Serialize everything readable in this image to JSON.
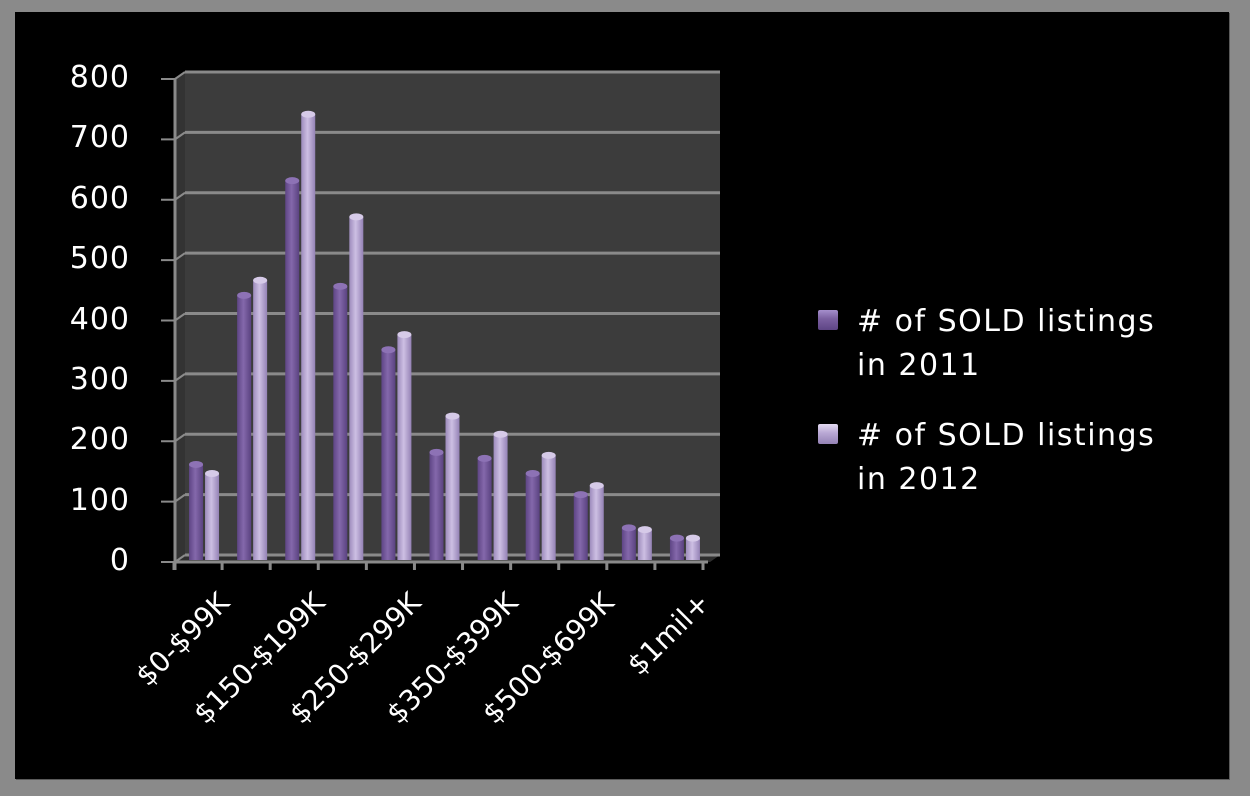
{
  "chart_data": {
    "type": "bar",
    "title": "",
    "xlabel": "",
    "ylabel": "",
    "ylim": [
      0,
      800
    ],
    "yticks": [
      0,
      100,
      200,
      300,
      400,
      500,
      600,
      700,
      800
    ],
    "grid": true,
    "legend_position": "right",
    "style": "3d-clustered-cylinder",
    "categories": [
      "$0-$99K",
      "",
      "$150-$199K",
      "",
      "$250-$299K",
      "",
      "$350-$399K",
      "",
      "$500-$699K",
      "",
      "$1mil+"
    ],
    "visible_tick_labels": [
      "$0-$99K",
      "$150-$199K",
      "$250-$299K",
      "$350-$399K",
      "$500-$699K",
      "$1mil+"
    ],
    "series": [
      {
        "name": "# of SOLD listings in 2011",
        "color": "#7a5fa0",
        "values": [
          150,
          430,
          620,
          445,
          340,
          170,
          160,
          135,
          100,
          45,
          28
        ]
      },
      {
        "name": "# of SOLD listings in 2012",
        "color": "#b9a8d4",
        "values": [
          135,
          455,
          730,
          560,
          365,
          230,
          200,
          165,
          115,
          42,
          28
        ]
      }
    ]
  },
  "colors": {
    "outer_background": "#8a8a8a",
    "chart_background": "#000000",
    "plot_wall": "#3c3c3c",
    "gridline": "#8a8a8a",
    "text": "#ffffff"
  },
  "legend": {
    "items": [
      {
        "line1": "# of SOLD listings",
        "line2": "in 2011",
        "color": "#7a5fa0"
      },
      {
        "line1": "# of SOLD listings",
        "line2": "in 2012",
        "color": "#b9a8d4"
      }
    ]
  },
  "axis": {
    "y_labels": [
      "800",
      "700",
      "600",
      "500",
      "400",
      "300",
      "200",
      "100",
      "0"
    ],
    "x_labels": [
      "$0-$99K",
      "$150-$199K",
      "$250-$299K",
      "$350-$399K",
      "$500-$699K",
      "$1mil+"
    ]
  }
}
